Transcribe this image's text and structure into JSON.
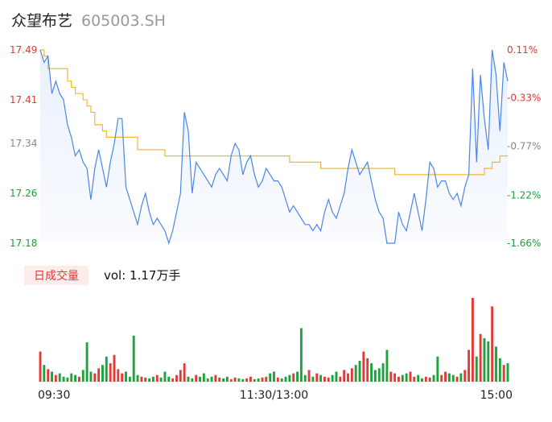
{
  "chart_data": {
    "type": "intraday",
    "title": "众望布艺",
    "subtitle": "605003.SH",
    "volume_label": "日成交量",
    "volume_text": "vol: 1.17万手",
    "price_color": "#4a86e8",
    "avg_color": "#f5b731",
    "up_color": "#e53935",
    "down_color": "#1aa33b",
    "ylim": [
      17.18,
      17.49
    ],
    "yticks": [
      17.49,
      17.41,
      17.34,
      17.26,
      17.18
    ],
    "y2lim": [
      -1.66,
      0.11
    ],
    "y2ticks": [
      {
        "value": 0.11,
        "label": "0.11%"
      },
      {
        "value": -0.33,
        "label": "-0.33%"
      },
      {
        "value": -0.77,
        "label": "-0.77%"
      },
      {
        "value": -1.22,
        "label": "-1.22%"
      },
      {
        "value": -1.66,
        "label": "-1.66%"
      }
    ],
    "xlim": [
      0,
      120
    ],
    "xticks": [
      {
        "value": 0,
        "label": "09:30"
      },
      {
        "value": 60,
        "label": "11:30/13:00"
      },
      {
        "value": 120,
        "label": "15:00"
      }
    ],
    "vlim": [
      0,
      100
    ],
    "price": [
      17.49,
      17.47,
      17.48,
      17.42,
      17.44,
      17.42,
      17.41,
      17.37,
      17.35,
      17.32,
      17.33,
      17.31,
      17.3,
      17.25,
      17.3,
      17.33,
      17.3,
      17.27,
      17.31,
      17.34,
      17.38,
      17.38,
      17.27,
      17.25,
      17.23,
      17.21,
      17.24,
      17.26,
      17.23,
      17.21,
      17.22,
      17.21,
      17.2,
      17.18,
      17.2,
      17.23,
      17.26,
      17.39,
      17.36,
      17.26,
      17.31,
      17.3,
      17.29,
      17.28,
      17.27,
      17.29,
      17.3,
      17.29,
      17.28,
      17.32,
      17.34,
      17.33,
      17.29,
      17.31,
      17.32,
      17.29,
      17.27,
      17.28,
      17.3,
      17.29,
      17.28,
      17.28,
      17.27,
      17.25,
      17.23,
      17.24,
      17.23,
      17.22,
      17.21,
      17.21,
      17.2,
      17.21,
      17.2,
      17.23,
      17.25,
      17.23,
      17.22,
      17.24,
      17.26,
      17.3,
      17.33,
      17.31,
      17.29,
      17.3,
      17.31,
      17.28,
      17.25,
      17.23,
      17.22,
      17.18,
      17.18,
      17.18,
      17.23,
      17.21,
      17.2,
      17.23,
      17.26,
      17.23,
      17.2,
      17.25,
      17.31,
      17.3,
      17.27,
      17.28,
      17.28,
      17.26,
      17.25,
      17.26,
      17.24,
      17.27,
      17.29,
      17.46,
      17.31,
      17.45,
      17.38,
      17.33,
      17.49,
      17.45,
      17.36,
      17.47,
      17.44
    ],
    "average": [
      17.49,
      17.48,
      17.46,
      17.46,
      17.46,
      17.46,
      17.46,
      17.44,
      17.43,
      17.42,
      17.42,
      17.41,
      17.4,
      17.39,
      17.37,
      17.37,
      17.36,
      17.35,
      17.35,
      17.35,
      17.35,
      17.35,
      17.35,
      17.35,
      17.35,
      17.33,
      17.33,
      17.33,
      17.33,
      17.33,
      17.33,
      17.33,
      17.32,
      17.32,
      17.32,
      17.32,
      17.32,
      17.32,
      17.32,
      17.32,
      17.32,
      17.32,
      17.32,
      17.32,
      17.32,
      17.32,
      17.32,
      17.32,
      17.32,
      17.32,
      17.32,
      17.32,
      17.32,
      17.32,
      17.32,
      17.32,
      17.32,
      17.32,
      17.32,
      17.32,
      17.32,
      17.32,
      17.32,
      17.32,
      17.31,
      17.31,
      17.31,
      17.31,
      17.31,
      17.31,
      17.31,
      17.31,
      17.3,
      17.3,
      17.3,
      17.3,
      17.3,
      17.3,
      17.3,
      17.3,
      17.3,
      17.3,
      17.3,
      17.3,
      17.3,
      17.3,
      17.3,
      17.3,
      17.3,
      17.3,
      17.3,
      17.29,
      17.29,
      17.29,
      17.29,
      17.29,
      17.29,
      17.29,
      17.29,
      17.29,
      17.29,
      17.29,
      17.29,
      17.29,
      17.29,
      17.29,
      17.29,
      17.29,
      17.29,
      17.29,
      17.29,
      17.29,
      17.29,
      17.29,
      17.3,
      17.3,
      17.31,
      17.31,
      17.32,
      17.32,
      17.32
    ],
    "volume": [
      36,
      20,
      15,
      12,
      8,
      10,
      6,
      5,
      10,
      8,
      6,
      14,
      47,
      12,
      10,
      16,
      20,
      30,
      22,
      32,
      15,
      10,
      12,
      6,
      55,
      8,
      6,
      5,
      4,
      6,
      8,
      5,
      12,
      6,
      4,
      8,
      14,
      22,
      6,
      4,
      8,
      6,
      10,
      4,
      6,
      8,
      5,
      4,
      6,
      3,
      5,
      4,
      3,
      4,
      6,
      3,
      4,
      5,
      6,
      10,
      12,
      5,
      4,
      6,
      8,
      10,
      12,
      64,
      8,
      14,
      6,
      10,
      8,
      6,
      5,
      8,
      12,
      6,
      14,
      10,
      16,
      20,
      25,
      36,
      28,
      22,
      14,
      16,
      22,
      38,
      12,
      10,
      6,
      8,
      10,
      12,
      6,
      8,
      4,
      6,
      5,
      8,
      30,
      8,
      12,
      10,
      8,
      6,
      10,
      14,
      38,
      100,
      30,
      57,
      52,
      48,
      90,
      42,
      28,
      20,
      22
    ]
  }
}
